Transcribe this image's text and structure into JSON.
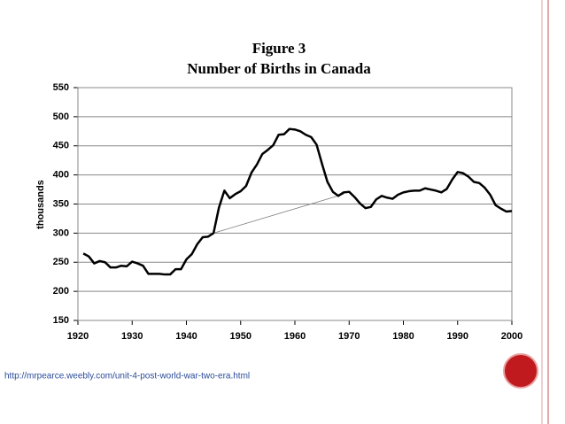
{
  "chart_data": {
    "type": "line",
    "title": "Figure 3",
    "subtitle": "Number of Births in Canada",
    "ylabel": "thousands",
    "x": [
      1921,
      1922,
      1923,
      1924,
      1925,
      1926,
      1927,
      1928,
      1929,
      1930,
      1931,
      1932,
      1933,
      1934,
      1935,
      1936,
      1937,
      1938,
      1939,
      1940,
      1941,
      1942,
      1943,
      1944,
      1945,
      1946,
      1947,
      1948,
      1949,
      1950,
      1951,
      1952,
      1953,
      1954,
      1955,
      1956,
      1957,
      1958,
      1959,
      1960,
      1961,
      1962,
      1963,
      1964,
      1965,
      1966,
      1967,
      1968,
      1969,
      1970,
      1971,
      1972,
      1973,
      1974,
      1975,
      1976,
      1977,
      1978,
      1979,
      1980,
      1981,
      1982,
      1983,
      1984,
      1985,
      1986,
      1987,
      1988,
      1989,
      1990,
      1991,
      1992,
      1993,
      1994,
      1995,
      1996,
      1997,
      1998,
      1999,
      2000
    ],
    "values": [
      265,
      260,
      248,
      252,
      250,
      241,
      241,
      244,
      243,
      251,
      248,
      244,
      230,
      230,
      230,
      229,
      229,
      238,
      238,
      255,
      264,
      281,
      293,
      294,
      300,
      344,
      373,
      360,
      367,
      372,
      381,
      404,
      418,
      436,
      443,
      451,
      469,
      470,
      479,
      478,
      475,
      469,
      465,
      452,
      419,
      388,
      371,
      364,
      370,
      371,
      362,
      351,
      343,
      345,
      358,
      364,
      361,
      359,
      366,
      370,
      372,
      373,
      373,
      377,
      375,
      373,
      370,
      376,
      392,
      405,
      403,
      397,
      388,
      386,
      378,
      366,
      348,
      342,
      337,
      338
    ],
    "color": "#000000",
    "trend": {
      "x": [
        1945,
        1969
      ],
      "values": [
        300,
        367
      ],
      "color": "#808080"
    },
    "xlim": [
      1920,
      2000
    ],
    "xticks": [
      1920,
      1930,
      1940,
      1950,
      1960,
      1970,
      1980,
      1990,
      2000
    ],
    "ylim": [
      150,
      550
    ],
    "yticks": [
      150,
      200,
      250,
      300,
      350,
      400,
      450,
      500,
      550
    ],
    "grid": true
  },
  "footer": {
    "url": "http://mrpearce.weebly.com/unit-4-post-world-war-two-era.html"
  }
}
